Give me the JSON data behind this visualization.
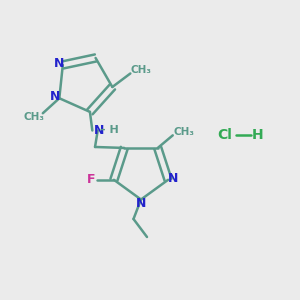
{
  "background_color": "#ebebeb",
  "bond_color": "#5a9a8a",
  "bond_width": 1.8,
  "n_color": "#2222cc",
  "f_color": "#cc3399",
  "cl_color": "#33aa55",
  "figsize": [
    3.0,
    3.0
  ],
  "dpi": 100,
  "xlim": [
    0,
    10
  ],
  "ylim": [
    0,
    10
  ]
}
